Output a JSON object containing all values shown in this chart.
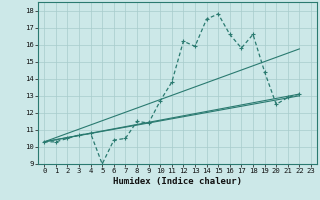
{
  "title": "",
  "xlabel": "Humidex (Indice chaleur)",
  "ylabel": "",
  "bg_color": "#cce8e8",
  "line_color": "#2a7a70",
  "grid_color": "#a8cccc",
  "xlim": [
    -0.5,
    23.5
  ],
  "ylim": [
    9,
    18.5
  ],
  "xticks": [
    0,
    1,
    2,
    3,
    4,
    5,
    6,
    7,
    8,
    9,
    10,
    11,
    12,
    13,
    14,
    15,
    16,
    17,
    18,
    19,
    20,
    21,
    22,
    23
  ],
  "yticks": [
    9,
    10,
    11,
    12,
    13,
    14,
    15,
    16,
    17,
    18
  ],
  "main_line": {
    "x": [
      0,
      1,
      2,
      3,
      4,
      5,
      6,
      7,
      8,
      9,
      10,
      11,
      12,
      13,
      14,
      15,
      16,
      17,
      18,
      19,
      20,
      21,
      22
    ],
    "y": [
      10.3,
      10.3,
      10.5,
      10.7,
      10.8,
      9.0,
      10.4,
      10.5,
      11.5,
      11.4,
      12.7,
      13.8,
      16.2,
      15.9,
      17.5,
      17.8,
      16.6,
      15.8,
      16.6,
      14.4,
      12.5,
      12.9,
      13.1
    ]
  },
  "trend_lines": [
    {
      "x": [
        0,
        22
      ],
      "y": [
        10.3,
        13.1
      ]
    },
    {
      "x": [
        0,
        22
      ],
      "y": [
        10.3,
        13.0
      ]
    },
    {
      "x": [
        0,
        22
      ],
      "y": [
        10.3,
        15.75
      ]
    }
  ]
}
